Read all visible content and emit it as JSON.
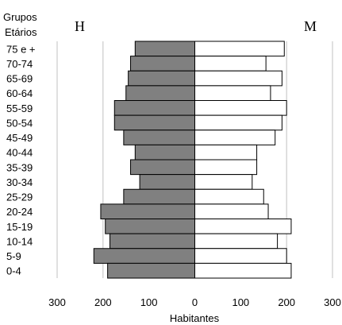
{
  "chart_data": {
    "type": "bar",
    "orientation": "horizontal-population-pyramid",
    "title": "",
    "ylabel_line1": "Grupos",
    "ylabel_line2": "Etários",
    "xlabel": "Habitantes",
    "side_labels": {
      "left": "H",
      "right": "M"
    },
    "categories": [
      "75 e +",
      "70-74",
      "65-69",
      "60-64",
      "55-59",
      "50-54",
      "45-49",
      "40-44",
      "35-39",
      "30-34",
      "25-29",
      "20-24",
      "15-19",
      "10-14",
      "5-9",
      "0-4"
    ],
    "series": [
      {
        "name": "H",
        "values": [
          130,
          140,
          145,
          150,
          175,
          175,
          155,
          130,
          140,
          120,
          155,
          205,
          195,
          185,
          220,
          190
        ]
      },
      {
        "name": "M",
        "values": [
          195,
          155,
          190,
          165,
          200,
          190,
          175,
          135,
          135,
          125,
          150,
          160,
          210,
          180,
          200,
          210
        ]
      }
    ],
    "xticks": [
      "300",
      "200",
      "100",
      "0",
      "100",
      "200",
      "300"
    ],
    "xlim": [
      -300,
      300
    ],
    "grid": true,
    "colors": {
      "H": "#808080",
      "M": "#ffffff",
      "grid": "#c0c0c0"
    }
  }
}
